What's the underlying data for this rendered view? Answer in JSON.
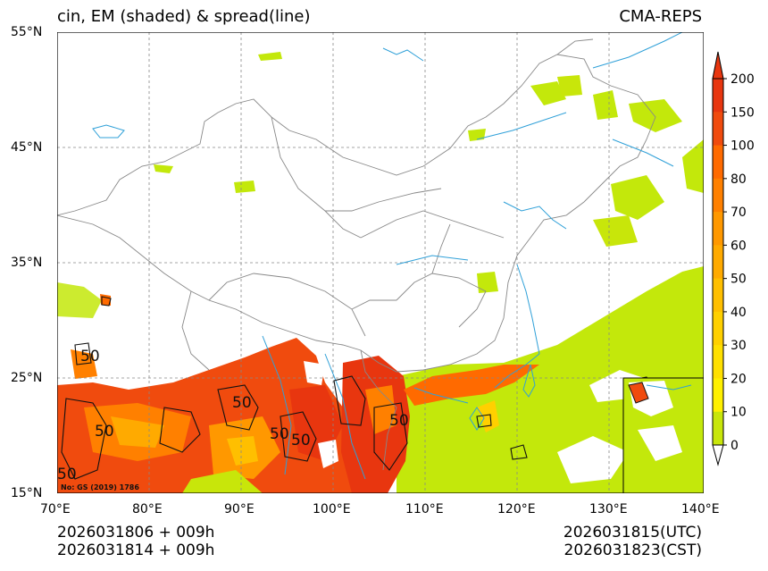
{
  "map": {
    "title_left": "cin, EM (shaded) & spread(line)",
    "title_right": "CMA-REPS",
    "lat_labels": [
      "55°N",
      "45°N",
      "35°N",
      "25°N",
      "15°N"
    ],
    "lon_labels": [
      "70°E",
      "80°E",
      "90°E",
      "100°E",
      "110°E",
      "120°E",
      "130°E",
      "140°E"
    ],
    "contour_labels": [
      "50",
      "50",
      "50",
      "50",
      "50",
      "50",
      "50"
    ],
    "map_note": "No: GS (2019) 1786",
    "colors": {
      "lowest": "#c8e60a",
      "highest": "#e8360f",
      "ocean_line": "#2fa0d8",
      "border_line": "#888888"
    }
  },
  "colorbar": {
    "levels": [
      "0",
      "10",
      "20",
      "30",
      "40",
      "50",
      "60",
      "70",
      "80",
      "100",
      "150",
      "200"
    ],
    "colors": [
      "#c3e80b",
      "#c8e60a",
      "#fff000",
      "#ffe000",
      "#ffd000",
      "#ffbf00",
      "#ffaa00",
      "#ff9800",
      "#ff8000",
      "#ff6a00",
      "#f04b0e",
      "#e8360f"
    ]
  },
  "footer": {
    "init_line1": "2026031806  +  009h",
    "init_line2": "2026031814  +  009h",
    "valid_utc": "2026031815(UTC)",
    "valid_cst": "2026031823(CST)"
  }
}
